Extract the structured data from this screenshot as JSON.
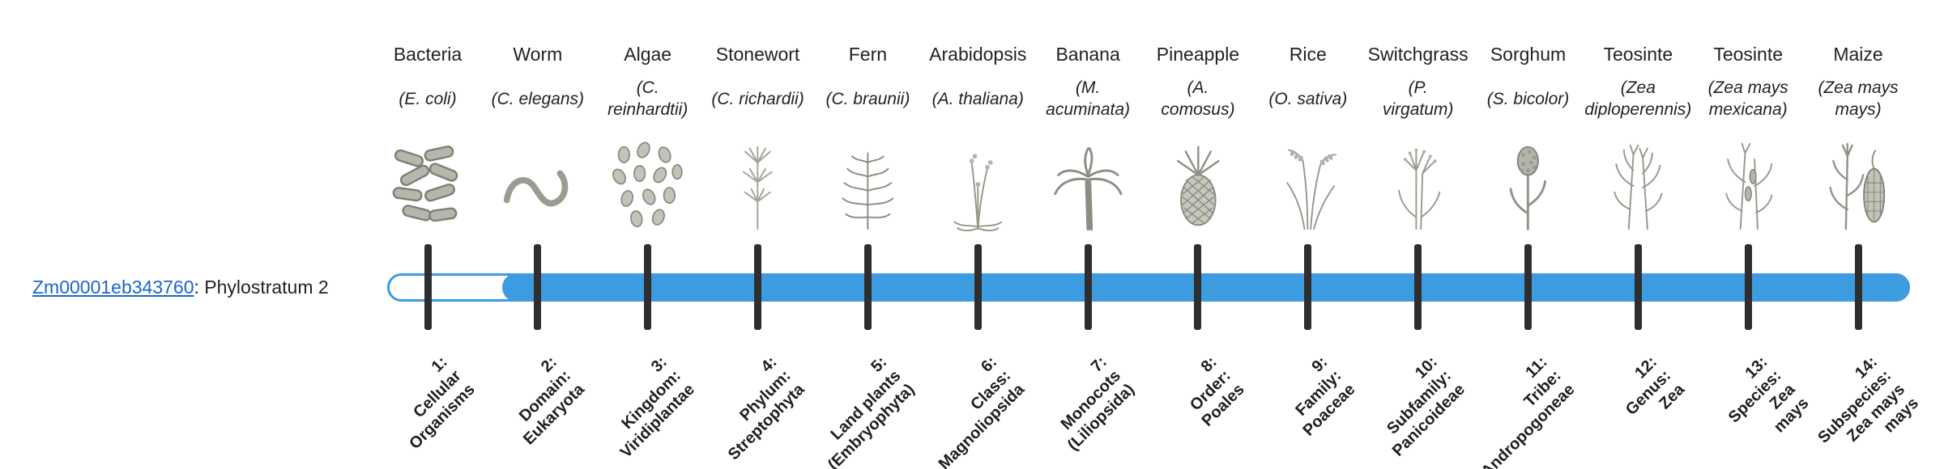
{
  "gene_label": {
    "id_text": "Zm00001eb343760",
    "rest_text": ": Phylostratum 2"
  },
  "bar": {
    "color": "#3d9be0",
    "tick_color": "#2e2e2e",
    "origin_stratum": 2
  },
  "strata": [
    {
      "num": "1",
      "common": "Bacteria",
      "sci": [
        "(E. coli)"
      ],
      "icon": "bacteria-icon",
      "label": [
        "1:",
        "Cellular",
        "Organisms"
      ]
    },
    {
      "num": "2",
      "common": "Worm",
      "sci": [
        "(C. elegans)"
      ],
      "icon": "worm-icon",
      "label": [
        "2:",
        "Domain:",
        "Eukaryota"
      ]
    },
    {
      "num": "3",
      "common": "Algae",
      "sci": [
        "(C.",
        "reinhardtii)"
      ],
      "icon": "algae-icon",
      "label": [
        "3:",
        "Kingdom:",
        "Viridiplantae"
      ]
    },
    {
      "num": "4",
      "common": "Stonewort",
      "sci": [
        "(C. richardii)"
      ],
      "icon": "stonewort-icon",
      "label": [
        "4:",
        "Phylum:",
        "Streptophyta"
      ]
    },
    {
      "num": "5",
      "common": "Fern",
      "sci": [
        "(C. braunii)"
      ],
      "icon": "fern-icon",
      "label": [
        "5:",
        "Land plants",
        "(Embryophyta)"
      ]
    },
    {
      "num": "6",
      "common": "Arabidopsis",
      "sci": [
        "(A. thaliana)"
      ],
      "icon": "arabidopsis-icon",
      "label": [
        "6:",
        "Class:",
        "Magnoliopsida"
      ]
    },
    {
      "num": "7",
      "common": "Banana",
      "sci": [
        "(M.",
        "acuminata)"
      ],
      "icon": "banana-icon",
      "label": [
        "7:",
        "Monocots",
        "(Liliopsida)"
      ]
    },
    {
      "num": "8",
      "common": "Pineapple",
      "sci": [
        "(A.",
        "comosus)"
      ],
      "icon": "pineapple-icon",
      "label": [
        "8:",
        "Order:",
        "Poales"
      ]
    },
    {
      "num": "9",
      "common": "Rice",
      "sci": [
        "(O. sativa)"
      ],
      "icon": "rice-icon",
      "label": [
        "9:",
        "Family:",
        "Poaceae"
      ]
    },
    {
      "num": "10",
      "common": "Switchgrass",
      "sci": [
        "(P.",
        "virgatum)"
      ],
      "icon": "switchgrass-icon",
      "label": [
        "10:",
        "Subfamily:",
        "Panicoideae"
      ]
    },
    {
      "num": "11",
      "common": "Sorghum",
      "sci": [
        "(S. bicolor)"
      ],
      "icon": "sorghum-icon",
      "label": [
        "11:",
        "Tribe:",
        "Andropogoneae"
      ]
    },
    {
      "num": "12",
      "common": "Teosinte",
      "sci": [
        "(Zea",
        "diploperennis)"
      ],
      "icon": "teosinte-icon",
      "label": [
        "12:",
        "Genus:",
        "Zea"
      ]
    },
    {
      "num": "13",
      "common": "Teosinte",
      "sci": [
        "(Zea mays",
        "mexicana)"
      ],
      "icon": "teosinte2-icon",
      "label": [
        "13:",
        "Species:",
        "Zea",
        "mays"
      ]
    },
    {
      "num": "14",
      "common": "Maize",
      "sci": [
        "(Zea mays",
        "mays)"
      ],
      "icon": "maize-icon",
      "label": [
        "14:",
        "Subspecies:",
        "Zea mays",
        "mays"
      ]
    }
  ]
}
